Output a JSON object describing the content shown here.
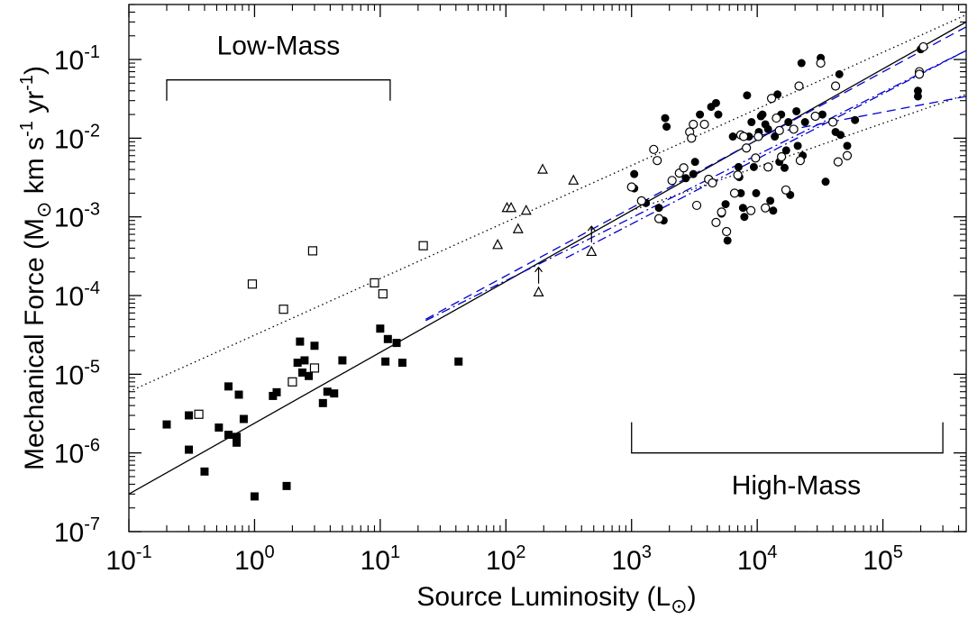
{
  "chart_data": {
    "type": "scatter",
    "xlabel": "Source Luminosity (L",
    "xlabel_sub": "⊙",
    "xlabel_close": ")",
    "ylabel": "Mechanical Force (M",
    "ylabel_sub": "⊙",
    "ylabel_units": " km s",
    "ylabel_exp1": "-1",
    "ylabel_yr": " yr",
    "ylabel_exp2": "-1",
    "ylabel_close": ")",
    "x_scale": "log",
    "y_scale": "log",
    "xlim": [
      0.1,
      460000
    ],
    "ylim": [
      1e-07,
      0.5
    ],
    "x_ticks": [
      {
        "value": 0.1,
        "base": "10",
        "exp": "-1"
      },
      {
        "value": 1,
        "base": "10",
        "exp": "0"
      },
      {
        "value": 10,
        "base": "10",
        "exp": "1"
      },
      {
        "value": 100,
        "base": "10",
        "exp": "2"
      },
      {
        "value": 1000,
        "base": "10",
        "exp": "3"
      },
      {
        "value": 10000,
        "base": "10",
        "exp": "4"
      },
      {
        "value": 100000,
        "base": "10",
        "exp": "5"
      }
    ],
    "y_ticks": [
      {
        "value": 1e-07,
        "base": "10",
        "exp": "-7"
      },
      {
        "value": 1e-06,
        "base": "10",
        "exp": "-6"
      },
      {
        "value": 1e-05,
        "base": "10",
        "exp": "-5"
      },
      {
        "value": 0.0001,
        "base": "10",
        "exp": "-4"
      },
      {
        "value": 0.001,
        "base": "10",
        "exp": "-3"
      },
      {
        "value": 0.01,
        "base": "10",
        "exp": "-2"
      },
      {
        "value": 0.1,
        "base": "10",
        "exp": "-1"
      }
    ],
    "grid": false,
    "annotations": {
      "low_mass": {
        "label": "Low-Mass",
        "x_range": [
          0.2,
          12
        ],
        "y": 0.055
      },
      "high_mass": {
        "label": "High-Mass",
        "x_range": [
          1000,
          300000
        ],
        "y": 1e-06
      }
    },
    "series": [
      {
        "marker": "filled-square",
        "points": [
          [
            0.2,
            2.3e-06
          ],
          [
            0.3,
            3e-06
          ],
          [
            0.3,
            1.1e-06
          ],
          [
            0.4,
            5.8e-07
          ],
          [
            0.52,
            2.1e-06
          ],
          [
            0.62,
            7e-06
          ],
          [
            0.62,
            1.7e-06
          ],
          [
            0.72,
            1.6e-06
          ],
          [
            0.72,
            1.35e-06
          ],
          [
            0.75,
            5.5e-06
          ],
          [
            0.82,
            2.7e-06
          ],
          [
            1.0,
            2.8e-07
          ],
          [
            1.4,
            5.3e-06
          ],
          [
            1.5,
            5.9e-06
          ],
          [
            1.8,
            3.8e-07
          ],
          [
            2.2,
            1.4e-05
          ],
          [
            2.3,
            2.6e-05
          ],
          [
            2.4,
            1.05e-05
          ],
          [
            2.5,
            1.5e-05
          ],
          [
            2.7,
            9.5e-06
          ],
          [
            3.0,
            2.3e-05
          ],
          [
            3.5,
            4.3e-06
          ],
          [
            3.8,
            6e-06
          ],
          [
            4.3,
            5.7e-06
          ],
          [
            5.0,
            1.5e-05
          ],
          [
            10,
            3.8e-05
          ],
          [
            11,
            1.45e-05
          ],
          [
            11.5,
            2.8e-05
          ],
          [
            13.5,
            2.5e-05
          ],
          [
            15,
            1.4e-05
          ],
          [
            42,
            1.45e-05
          ]
        ]
      },
      {
        "marker": "open-square",
        "points": [
          [
            0.36,
            3.1e-06
          ],
          [
            0.96,
            0.00014
          ],
          [
            1.7,
            6.7e-05
          ],
          [
            2.0,
            8e-06
          ],
          [
            2.9,
            0.00037
          ],
          [
            3.0,
            1.2e-05
          ],
          [
            9.0,
            0.000145
          ],
          [
            10.5,
            0.000105
          ],
          [
            22,
            0.00043
          ]
        ]
      },
      {
        "marker": "open-triangle",
        "points": [
          [
            86,
            0.00044
          ],
          [
            102,
            0.0013
          ],
          [
            110,
            0.0013
          ],
          [
            125,
            0.0007
          ],
          [
            145,
            0.0012
          ],
          [
            182,
            0.00011
          ],
          [
            196,
            0.004
          ],
          [
            345,
            0.0029
          ],
          [
            480,
            0.00036
          ]
        ]
      },
      {
        "marker": "up-arrow",
        "points": [
          [
            182,
            0.00018
          ],
          [
            480,
            0.0006
          ]
        ]
      },
      {
        "marker": "filled-circle",
        "points": [
          [
            1050,
            0.0035
          ],
          [
            1050,
            0.0023
          ],
          [
            1300,
            0.0015
          ],
          [
            1650,
            0.0013
          ],
          [
            1800,
            0.0009
          ],
          [
            1850,
            0.018
          ],
          [
            1900,
            0.014
          ],
          [
            2700,
            0.0031
          ],
          [
            3100,
            0.0035
          ],
          [
            3200,
            0.005
          ],
          [
            3500,
            0.02
          ],
          [
            4300,
            0.025
          ],
          [
            4700,
            0.028
          ],
          [
            4900,
            0.02
          ],
          [
            5200,
            0.0011
          ],
          [
            5600,
            0.00145
          ],
          [
            5800,
            0.0005
          ],
          [
            6400,
            0.0105
          ],
          [
            7100,
            0.0043
          ],
          [
            7200,
            0.0032
          ],
          [
            7400,
            0.002
          ],
          [
            7700,
            0.0013
          ],
          [
            7900,
            0.001
          ],
          [
            8300,
            0.035
          ],
          [
            8600,
            0.0105
          ],
          [
            9000,
            0.016
          ],
          [
            9400,
            0.0043
          ],
          [
            9800,
            0.002
          ],
          [
            10300,
            0.012
          ],
          [
            10700,
            0.019
          ],
          [
            11000,
            0.02
          ],
          [
            11600,
            0.015
          ],
          [
            12200,
            0.013
          ],
          [
            12700,
            0.0016
          ],
          [
            13400,
            0.0012
          ],
          [
            13800,
            0.0105
          ],
          [
            14500,
            0.036
          ],
          [
            15000,
            0.005
          ],
          [
            15500,
            0.02
          ],
          [
            16500,
            0.0042
          ],
          [
            17000,
            0.007
          ],
          [
            17700,
            0.016
          ],
          [
            18300,
            0.0019
          ],
          [
            20500,
            0.022
          ],
          [
            21000,
            0.008
          ],
          [
            22500,
            0.09
          ],
          [
            23000,
            0.006
          ],
          [
            24000,
            0.016
          ],
          [
            32000,
            0.105
          ],
          [
            33000,
            0.02
          ],
          [
            35000,
            0.0028
          ],
          [
            42000,
            0.012
          ],
          [
            45000,
            0.065
          ],
          [
            46000,
            0.011
          ],
          [
            52000,
            0.008
          ],
          [
            60000,
            0.017
          ],
          [
            190000,
            0.04
          ],
          [
            190000,
            0.034
          ],
          [
            200000,
            0.135
          ]
        ]
      },
      {
        "marker": "open-circle",
        "points": [
          [
            1000,
            0.0024
          ],
          [
            1200,
            0.0016
          ],
          [
            1500,
            0.0072
          ],
          [
            1600,
            0.0052
          ],
          [
            1650,
            0.00095
          ],
          [
            2100,
            0.0029
          ],
          [
            2400,
            0.0036
          ],
          [
            2600,
            0.0042
          ],
          [
            2900,
            0.012
          ],
          [
            3000,
            0.01
          ],
          [
            3100,
            0.015
          ],
          [
            3300,
            0.0014
          ],
          [
            3800,
            0.015
          ],
          [
            4100,
            0.003
          ],
          [
            4400,
            0.0027
          ],
          [
            4700,
            0.00085
          ],
          [
            5200,
            0.00115
          ],
          [
            5700,
            0.00065
          ],
          [
            6600,
            0.002
          ],
          [
            7000,
            0.0034
          ],
          [
            7400,
            0.011
          ],
          [
            7800,
            0.0105
          ],
          [
            8200,
            0.0075
          ],
          [
            8900,
            0.0012
          ],
          [
            9700,
            0.0056
          ],
          [
            10200,
            0.0105
          ],
          [
            11600,
            0.0013
          ],
          [
            12200,
            0.0043
          ],
          [
            13000,
            0.032
          ],
          [
            14200,
            0.018
          ],
          [
            15000,
            0.0125
          ],
          [
            15600,
            0.0058
          ],
          [
            16900,
            0.0022
          ],
          [
            19500,
            0.013
          ],
          [
            21500,
            0.046
          ],
          [
            22000,
            0.0052
          ],
          [
            29000,
            0.019
          ],
          [
            32000,
            0.09
          ],
          [
            40000,
            0.016
          ],
          [
            42000,
            0.046
          ],
          [
            44000,
            0.005
          ],
          [
            52000,
            0.006
          ],
          [
            195000,
            0.07
          ],
          [
            195000,
            0.065
          ],
          [
            210000,
            0.145
          ]
        ]
      }
    ],
    "fit_lines": [
      {
        "style": "solid",
        "color": "#000000",
        "x": [
          0.1,
          460000
        ],
        "y": [
          3e-07,
          0.3
        ]
      },
      {
        "style": "dotted",
        "color": "#000000",
        "x": [
          0.1,
          460000
        ],
        "y": [
          6e-06,
          0.37
        ]
      },
      {
        "style": "dotted",
        "color": "#000000",
        "x": [
          1000,
          460000
        ],
        "y": [
          0.0012,
          0.036
        ]
      },
      {
        "style": "dash-dot",
        "color": "#0000cc",
        "x": [
          23,
          460000
        ],
        "y": [
          4.8e-05,
          0.13
        ]
      },
      {
        "style": "dash-dot",
        "color": "#0000cc",
        "x": [
          300,
          460000
        ],
        "y": [
          0.0003,
          0.13
        ]
      },
      {
        "style": "dashed",
        "color": "#0000cc",
        "x": [
          23,
          460000
        ],
        "y": [
          5e-05,
          0.26
        ]
      },
      {
        "style": "dashed",
        "color": "#0000cc",
        "x": [
          8000,
          460000
        ],
        "y": [
          0.01,
          0.034
        ]
      }
    ]
  }
}
